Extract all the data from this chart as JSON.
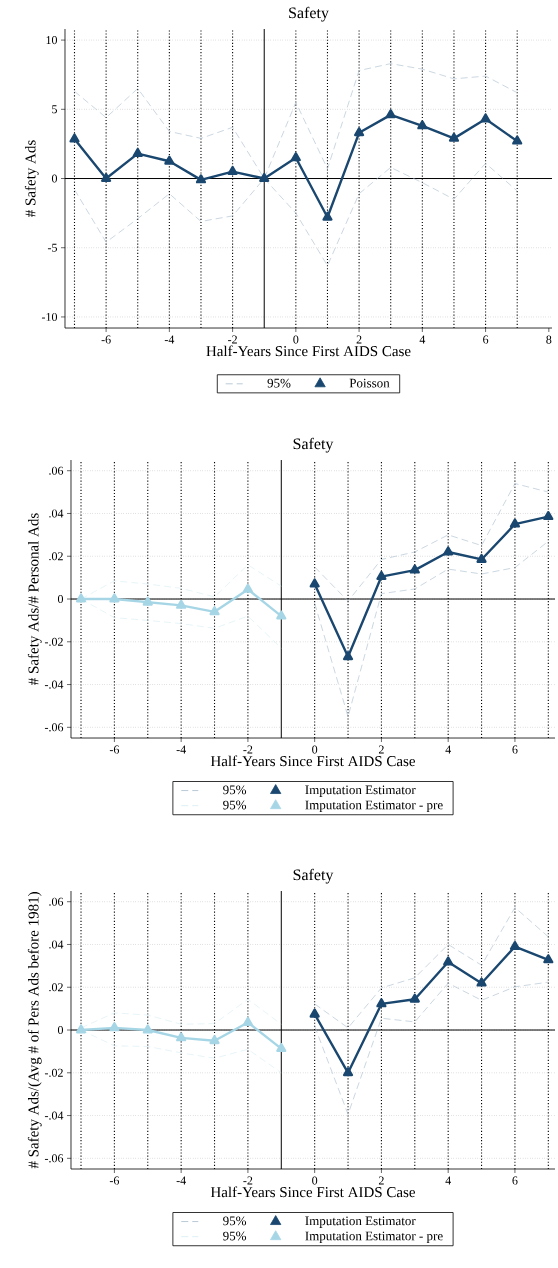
{
  "chart_data": [
    {
      "type": "line",
      "title": "Safety",
      "xlabel": "Half-Years Since First AIDS Case",
      "ylabel": "# Safety Ads",
      "x": [
        -7,
        -6,
        -5,
        -4,
        -3,
        -2,
        -1,
        0,
        1,
        2,
        3,
        4,
        5,
        6,
        7
      ],
      "series": [
        {
          "name": "95%",
          "color": "#a8bccd",
          "line_style": "dashed",
          "marker": "none",
          "values": [
            6.3,
            4.4,
            6.5,
            3.4,
            2.9,
            3.7,
            0,
            5.5,
            0.7,
            7.8,
            8.3,
            7.9,
            7.2,
            7.4,
            6.2
          ]
        },
        {
          "color": "#a8bccd",
          "line_style": "dashed",
          "marker": "none",
          "values": [
            -0.8,
            -4.6,
            -2.9,
            -1.1,
            -3.1,
            -2.7,
            0,
            -2.5,
            -6.3,
            -1.1,
            0.8,
            -0.3,
            -1.5,
            1.1,
            -0.9
          ]
        },
        {
          "name": "Poisson",
          "color": "#1a476f",
          "line_style": "solid",
          "marker": "triangle",
          "values": [
            2.85,
            0,
            1.8,
            1.25,
            -0.1,
            0.5,
            0,
            1.5,
            -2.8,
            3.3,
            4.6,
            3.8,
            2.9,
            4.3,
            2.7
          ]
        }
      ],
      "xlim": [
        -7.3,
        8.1
      ],
      "xticks": [
        -6,
        -4,
        -2,
        0,
        2,
        4,
        6,
        8
      ],
      "ylim": [
        -10.8,
        10.8
      ],
      "yticks": [
        -10,
        -5,
        0,
        5,
        10
      ],
      "grid": "y",
      "legend": "bottom",
      "ref_lines": [
        {
          "axis": "x",
          "value": -7,
          "line_style": "dotted",
          "color": "#000000"
        },
        {
          "axis": "x",
          "value": -6,
          "line_style": "dotted",
          "color": "#000000"
        },
        {
          "axis": "x",
          "value": -5,
          "line_style": "dotted",
          "color": "#000000"
        },
        {
          "axis": "x",
          "value": -4,
          "line_style": "dotted",
          "color": "#000000"
        },
        {
          "axis": "x",
          "value": -3,
          "line_style": "dotted",
          "color": "#000000"
        },
        {
          "axis": "x",
          "value": -2,
          "line_style": "dotted",
          "color": "#000000"
        },
        {
          "axis": "x",
          "value": 0,
          "line_style": "dotted",
          "color": "#000000"
        },
        {
          "axis": "x",
          "value": 1,
          "line_style": "dotted",
          "color": "#000000"
        },
        {
          "axis": "x",
          "value": 2,
          "line_style": "dotted",
          "color": "#000000"
        },
        {
          "axis": "x",
          "value": 3,
          "line_style": "dotted",
          "color": "#000000"
        },
        {
          "axis": "x",
          "value": 4,
          "line_style": "dotted",
          "color": "#000000"
        },
        {
          "axis": "x",
          "value": 5,
          "line_style": "dotted",
          "color": "#000000"
        },
        {
          "axis": "x",
          "value": 6,
          "line_style": "dotted",
          "color": "#000000"
        },
        {
          "axis": "x",
          "value": 7,
          "line_style": "dotted",
          "color": "#000000"
        },
        {
          "axis": "x",
          "value": -1,
          "line_style": "solid",
          "color": "#000000"
        },
        {
          "axis": "y",
          "value": 0,
          "line_style": "solid",
          "color": "#000000"
        }
      ]
    },
    {
      "type": "line",
      "title": "Safety",
      "xlabel": "Half-Years Since First AIDS Case",
      "ylabel": "# Safety Ads/# Personal Ads",
      "series": [
        {
          "name": "95%",
          "color": "#a8bccd",
          "line_style": "dashed",
          "marker": "none",
          "x": [
            0,
            1,
            2,
            3,
            4,
            5,
            6,
            7
          ],
          "values": [
            0.015,
            -0.001,
            0.0185,
            0.022,
            0.03,
            0.025,
            0.054,
            0.05
          ]
        },
        {
          "color": "#a8bccd",
          "line_style": "dashed",
          "marker": "none",
          "x": [
            0,
            1,
            2,
            3,
            4,
            5,
            6,
            7
          ],
          "values": [
            -0.002,
            -0.055,
            0.0025,
            0.0047,
            0.014,
            0.0117,
            0.0147,
            0.027
          ]
        },
        {
          "name": "Imputation Estimator",
          "color": "#1a476f",
          "line_style": "solid",
          "marker": "triangle",
          "x": [
            0,
            1,
            2,
            3,
            4,
            5,
            6,
            7
          ],
          "values": [
            0.007,
            -0.027,
            0.0105,
            0.0135,
            0.022,
            0.0185,
            0.035,
            0.0385
          ]
        },
        {
          "name": "95%",
          "color": "#d6ecf3",
          "line_style": "dashed",
          "marker": "none",
          "x": [
            -7,
            -6,
            -5,
            -4,
            -3,
            -2,
            -1
          ],
          "values": [
            0,
            0.0085,
            0.007,
            0.005,
            0.001,
            0.016,
            0.006
          ]
        },
        {
          "color": "#d6ecf3",
          "line_style": "dashed",
          "marker": "none",
          "x": [
            -7,
            -6,
            -5,
            -4,
            -3,
            -2,
            -1
          ],
          "values": [
            0,
            -0.0087,
            -0.01,
            -0.0115,
            -0.0137,
            -0.008,
            -0.023
          ]
        },
        {
          "name": "Imputation Estimator - pre",
          "color": "#a6d6e6",
          "line_style": "solid",
          "marker": "triangle",
          "x": [
            -7,
            -6,
            -5,
            -4,
            -3,
            -2,
            -1
          ],
          "values": [
            0,
            0,
            -0.0015,
            -0.003,
            -0.006,
            0.0045,
            -0.008
          ]
        }
      ],
      "xlim": [
        -7.3,
        7.2
      ],
      "xticks": [
        -6,
        -4,
        -2,
        0,
        2,
        4,
        6
      ],
      "ylim": [
        -0.065,
        0.065
      ],
      "yticks": [
        {
          "value": -0.06,
          "label": "-.06"
        },
        {
          "value": -0.04,
          "label": "-.04"
        },
        {
          "value": -0.02,
          "label": "-.02"
        },
        0,
        {
          "value": 0.02,
          "label": ".02"
        },
        {
          "value": 0.04,
          "label": ".04"
        },
        {
          "value": 0.06,
          "label": ".06"
        }
      ],
      "grid": "y",
      "legend": "bottom",
      "ref_lines": [
        {
          "axis": "x",
          "value": -7,
          "line_style": "dotted",
          "color": "#000000"
        },
        {
          "axis": "x",
          "value": -6,
          "line_style": "dotted",
          "color": "#000000"
        },
        {
          "axis": "x",
          "value": -5,
          "line_style": "dotted",
          "color": "#000000"
        },
        {
          "axis": "x",
          "value": -4,
          "line_style": "dotted",
          "color": "#000000"
        },
        {
          "axis": "x",
          "value": -3,
          "line_style": "dotted",
          "color": "#000000"
        },
        {
          "axis": "x",
          "value": -2,
          "line_style": "dotted",
          "color": "#000000"
        },
        {
          "axis": "x",
          "value": 0,
          "line_style": "dotted",
          "color": "#000000"
        },
        {
          "axis": "x",
          "value": 1,
          "line_style": "dotted",
          "color": "#000000"
        },
        {
          "axis": "x",
          "value": 2,
          "line_style": "dotted",
          "color": "#000000"
        },
        {
          "axis": "x",
          "value": 3,
          "line_style": "dotted",
          "color": "#000000"
        },
        {
          "axis": "x",
          "value": 4,
          "line_style": "dotted",
          "color": "#000000"
        },
        {
          "axis": "x",
          "value": 5,
          "line_style": "dotted",
          "color": "#000000"
        },
        {
          "axis": "x",
          "value": 6,
          "line_style": "dotted",
          "color": "#000000"
        },
        {
          "axis": "x",
          "value": 7,
          "line_style": "dotted",
          "color": "#000000"
        },
        {
          "axis": "x",
          "value": -1,
          "line_style": "solid",
          "color": "#000000"
        },
        {
          "axis": "y",
          "value": 0,
          "line_style": "solid",
          "color": "#000000"
        }
      ]
    },
    {
      "type": "line",
      "title": "Safety",
      "xlabel": "Half-Years Since First AIDS Case",
      "ylabel": "# Safety Ads/(Avg # of Pers Ads before 1981)",
      "series": [
        {
          "name": "95%",
          "color": "#a8bccd",
          "line_style": "dashed",
          "marker": "none",
          "x": [
            0,
            1,
            2,
            3,
            4,
            5,
            6,
            7
          ],
          "values": [
            0.0122,
            0.001,
            0.0197,
            0.0244,
            0.04,
            0.0303,
            0.0573,
            0.0436
          ]
        },
        {
          "color": "#a8bccd",
          "line_style": "dashed",
          "marker": "none",
          "x": [
            0,
            1,
            2,
            3,
            4,
            5,
            6,
            7
          ],
          "values": [
            0.0018,
            -0.0394,
            0.0055,
            0.0038,
            0.0219,
            0.0139,
            0.0202,
            0.0224
          ]
        },
        {
          "name": "Imputation Estimator",
          "color": "#1a476f",
          "line_style": "solid",
          "marker": "triangle",
          "x": [
            0,
            1,
            2,
            3,
            4,
            5,
            6,
            7
          ],
          "values": [
            0.0074,
            -0.02,
            0.0122,
            0.0144,
            0.0318,
            0.0219,
            0.039,
            0.0328
          ]
        },
        {
          "name": "95%",
          "color": "#d6ecf3",
          "line_style": "dashed",
          "marker": "none",
          "x": [
            -7,
            -6,
            -5,
            -4,
            -3,
            -2,
            -1
          ],
          "values": [
            0.001,
            0.008,
            0.007,
            0.0027,
            0.003,
            0.0144,
            0.0027
          ]
        },
        {
          "color": "#d6ecf3",
          "line_style": "dashed",
          "marker": "none",
          "x": [
            -7,
            -6,
            -5,
            -4,
            -3,
            -2,
            -1
          ],
          "values": [
            0,
            -0.0074,
            -0.0077,
            -0.0107,
            -0.0132,
            -0.009,
            -0.02
          ]
        },
        {
          "name": "Imputation Estimator - pre",
          "color": "#a6d6e6",
          "line_style": "solid",
          "marker": "triangle",
          "x": [
            -7,
            -6,
            -5,
            -4,
            -3,
            -2,
            -1
          ],
          "values": [
            0,
            0.001,
            0,
            -0.0037,
            -0.005,
            0.0035,
            -0.0087
          ]
        }
      ],
      "xlim": [
        -7.3,
        7.2
      ],
      "xticks": [
        -6,
        -4,
        -2,
        0,
        2,
        4,
        6
      ],
      "ylim": [
        -0.065,
        0.065
      ],
      "yticks": [
        {
          "value": -0.06,
          "label": "-.06"
        },
        {
          "value": -0.04,
          "label": "-.04"
        },
        {
          "value": -0.02,
          "label": "-.02"
        },
        0,
        {
          "value": 0.02,
          "label": ".02"
        },
        {
          "value": 0.04,
          "label": ".04"
        },
        {
          "value": 0.06,
          "label": ".06"
        }
      ],
      "grid": "y",
      "legend": "bottom",
      "ref_lines": [
        {
          "axis": "x",
          "value": -7,
          "line_style": "dotted",
          "color": "#000000"
        },
        {
          "axis": "x",
          "value": -6,
          "line_style": "dotted",
          "color": "#000000"
        },
        {
          "axis": "x",
          "value": -5,
          "line_style": "dotted",
          "color": "#000000"
        },
        {
          "axis": "x",
          "value": -4,
          "line_style": "dotted",
          "color": "#000000"
        },
        {
          "axis": "x",
          "value": -3,
          "line_style": "dotted",
          "color": "#000000"
        },
        {
          "axis": "x",
          "value": -2,
          "line_style": "dotted",
          "color": "#000000"
        },
        {
          "axis": "x",
          "value": 0,
          "line_style": "dotted",
          "color": "#000000"
        },
        {
          "axis": "x",
          "value": 1,
          "line_style": "dotted",
          "color": "#000000"
        },
        {
          "axis": "x",
          "value": 2,
          "line_style": "dotted",
          "color": "#000000"
        },
        {
          "axis": "x",
          "value": 3,
          "line_style": "dotted",
          "color": "#000000"
        },
        {
          "axis": "x",
          "value": 4,
          "line_style": "dotted",
          "color": "#000000"
        },
        {
          "axis": "x",
          "value": 5,
          "line_style": "dotted",
          "color": "#000000"
        },
        {
          "axis": "x",
          "value": 6,
          "line_style": "dotted",
          "color": "#000000"
        },
        {
          "axis": "x",
          "value": 7,
          "line_style": "dotted",
          "color": "#000000"
        },
        {
          "axis": "x",
          "value": -1,
          "line_style": "solid",
          "color": "#000000"
        },
        {
          "axis": "y",
          "value": 0,
          "line_style": "solid",
          "color": "#000000"
        }
      ]
    }
  ]
}
